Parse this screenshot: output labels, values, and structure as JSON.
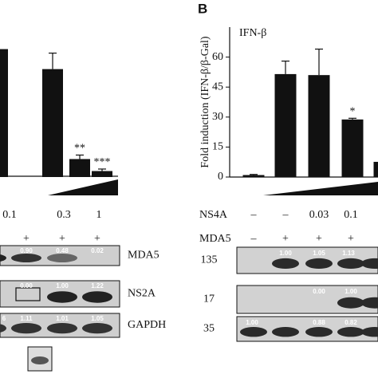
{
  "chart_data": [
    {
      "type": "bar",
      "values": [
        64,
        54,
        9,
        3
      ],
      "errors": [
        null,
        8,
        2,
        1
      ],
      "annotations": [
        null,
        null,
        "**",
        "***"
      ],
      "ylim": [
        0,
        75
      ],
      "color": "#111111"
    },
    {
      "type": "bar",
      "title": "IFN-β",
      "ylabel": "Fold induction (IFN-β/β-Gal)",
      "values": [
        1,
        51.5,
        51,
        28.8,
        7.6
      ],
      "errors": [
        0.3,
        6.5,
        13,
        0.6,
        null
      ],
      "annotations": [
        null,
        null,
        null,
        "*",
        null
      ],
      "ylim": [
        0,
        75
      ],
      "yticks": [
        0,
        15,
        30,
        45,
        60
      ],
      "color": "#111111"
    }
  ],
  "panel_b_label": "B",
  "left": {
    "doses": [
      "0.1",
      "0.3",
      "1"
    ],
    "mda5": [
      "+",
      "+",
      "+"
    ],
    "blots": [
      {
        "name": "MDA5",
        "values": [
          "0.90",
          "0.48",
          "0.02"
        ]
      },
      {
        "name": "NS2A",
        "values": [
          "0.00",
          "1.00",
          "1.22"
        ]
      },
      {
        "name": "GAPDH",
        "values": [
          "6",
          "1.11",
          "1.01",
          "1.05"
        ]
      }
    ]
  },
  "right": {
    "rows": [
      {
        "label": "NS4A",
        "values": [
          "–",
          "–",
          "0.03",
          "0.1"
        ]
      },
      {
        "label": "MDA5",
        "values": [
          "–",
          "+",
          "+",
          "+"
        ]
      }
    ],
    "blots": [
      {
        "marker": "135",
        "values": [
          "1.00",
          "1.05",
          "1.13"
        ]
      },
      {
        "marker": "17",
        "values": [
          "0.00",
          "1.00"
        ]
      },
      {
        "marker": "35",
        "values": [
          "1.00",
          "0.88",
          "0.82"
        ]
      }
    ]
  }
}
